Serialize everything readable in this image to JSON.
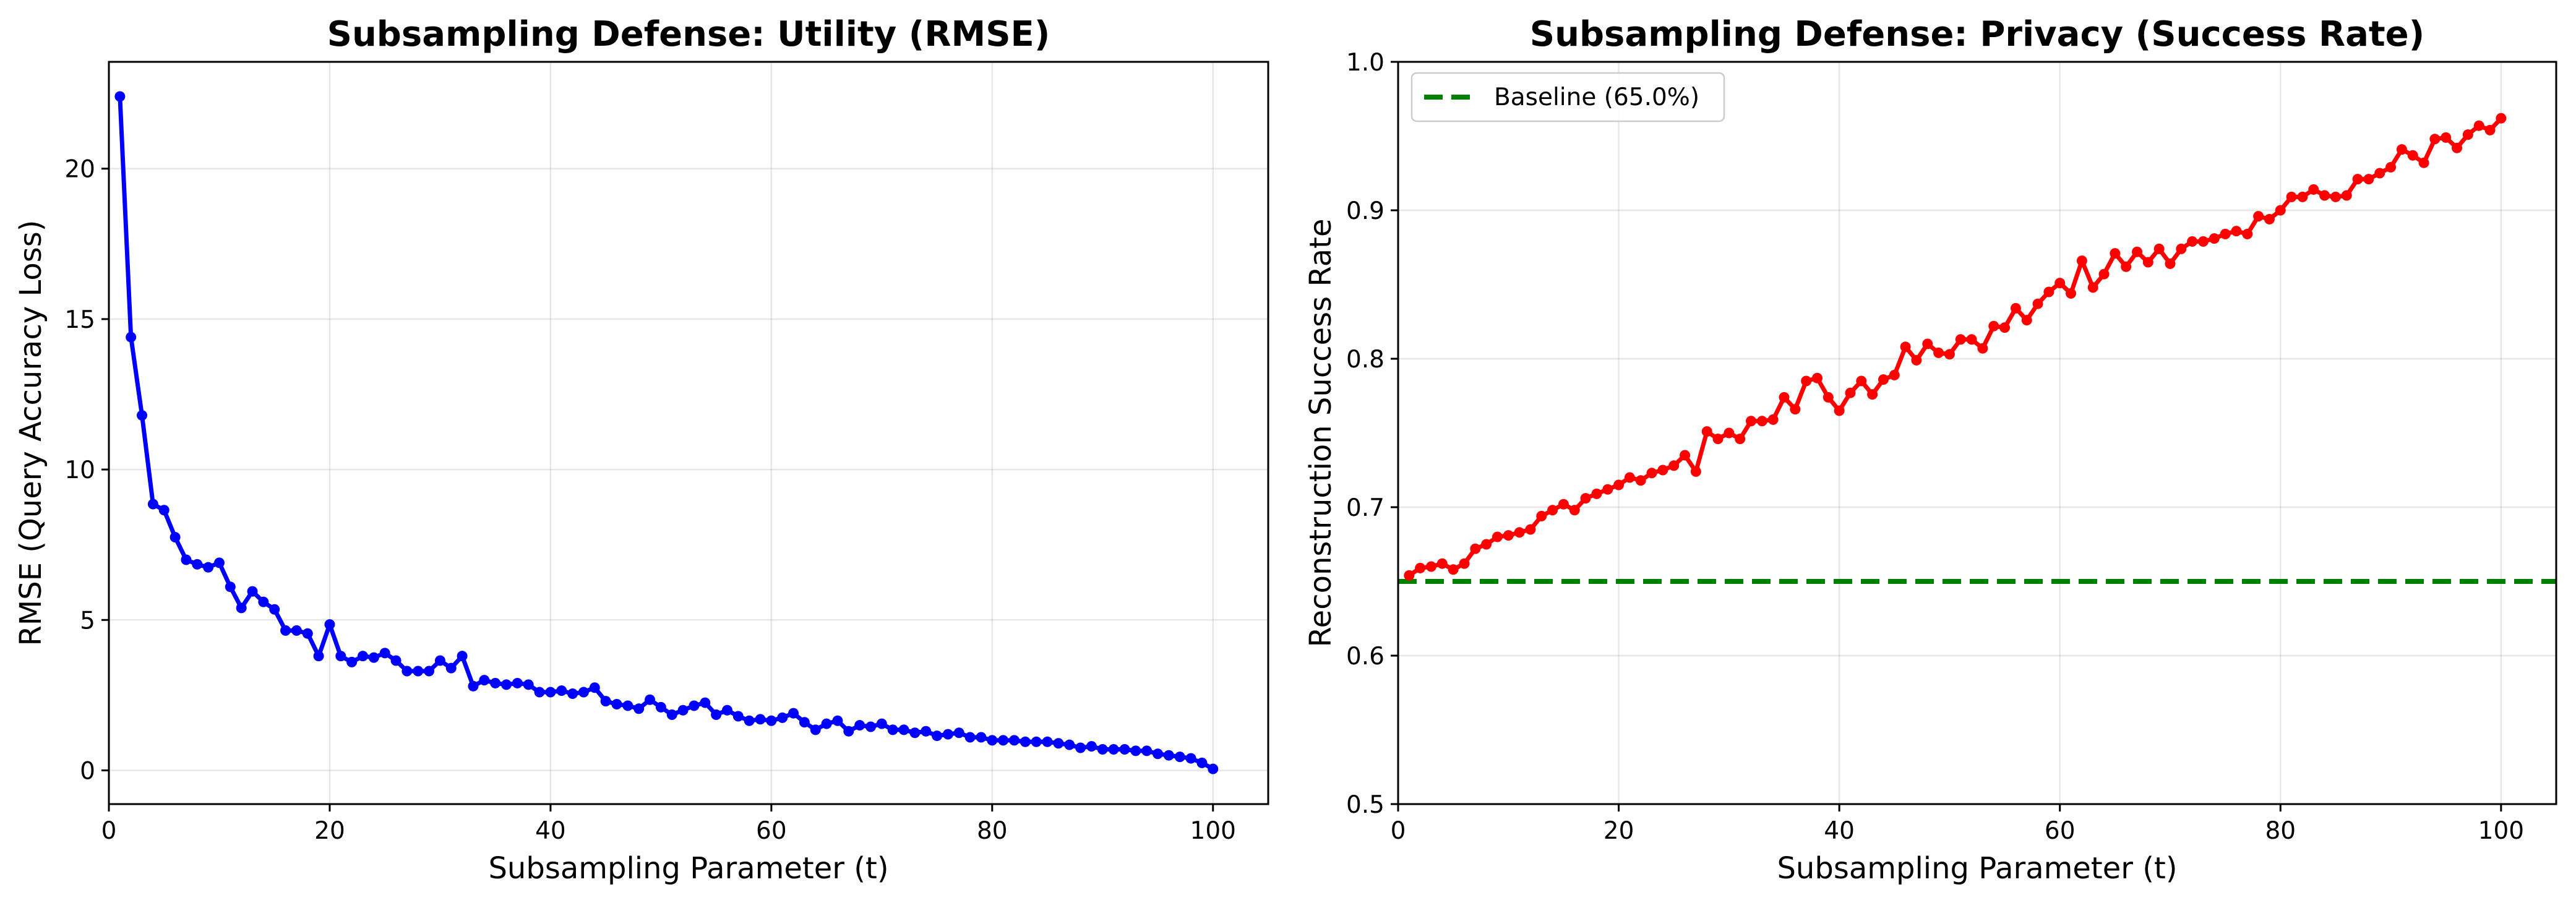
{
  "chart_data": [
    {
      "type": "line",
      "title": "Subsampling Defense: Utility (RMSE)",
      "xlabel": "Subsampling Parameter (t)",
      "ylabel": "RMSE (Query Accuracy Loss)",
      "xlim": [
        0,
        105
      ],
      "ylim": [
        -1.12,
        23.55
      ],
      "xticks": [
        0,
        20,
        40,
        60,
        80,
        100
      ],
      "yticks": [
        0,
        5,
        10,
        15,
        20
      ],
      "grid": true,
      "color": "#0000ff",
      "series": [
        {
          "x": [
            1,
            2,
            3,
            4,
            5,
            6,
            7,
            8,
            9,
            10,
            11,
            12,
            13,
            14,
            15,
            16,
            17,
            18,
            19,
            20,
            21,
            22,
            23,
            24,
            25,
            26,
            27,
            28,
            29,
            30,
            31,
            32,
            33,
            34,
            35,
            36,
            37,
            38,
            39,
            40,
            41,
            42,
            43,
            44,
            45,
            46,
            47,
            48,
            49,
            50,
            51,
            52,
            53,
            54,
            55,
            56,
            57,
            58,
            59,
            60,
            61,
            62,
            63,
            64,
            65,
            66,
            67,
            68,
            69,
            70,
            71,
            72,
            73,
            74,
            75,
            76,
            77,
            78,
            79,
            80,
            81,
            82,
            83,
            84,
            85,
            86,
            87,
            88,
            89,
            90,
            91,
            92,
            93,
            94,
            95,
            96,
            97,
            98,
            99,
            100
          ],
          "values": [
            22.4,
            14.4,
            11.8,
            8.85,
            8.65,
            7.75,
            7.0,
            6.85,
            6.75,
            6.9,
            6.1,
            5.4,
            5.95,
            5.6,
            5.35,
            4.65,
            4.65,
            4.55,
            3.8,
            4.85,
            3.8,
            3.6,
            3.8,
            3.75,
            3.9,
            3.65,
            3.3,
            3.3,
            3.3,
            3.65,
            3.4,
            3.8,
            2.8,
            3.0,
            2.9,
            2.85,
            2.9,
            2.85,
            2.6,
            2.6,
            2.65,
            2.55,
            2.6,
            2.75,
            2.3,
            2.2,
            2.15,
            2.05,
            2.35,
            2.1,
            1.85,
            2.0,
            2.15,
            2.25,
            1.85,
            2.0,
            1.8,
            1.65,
            1.7,
            1.65,
            1.75,
            1.9,
            1.6,
            1.35,
            1.55,
            1.65,
            1.3,
            1.5,
            1.45,
            1.55,
            1.35,
            1.35,
            1.25,
            1.3,
            1.15,
            1.2,
            1.25,
            1.1,
            1.1,
            1.0,
            1.0,
            1.0,
            0.95,
            0.95,
            0.95,
            0.9,
            0.85,
            0.75,
            0.8,
            0.7,
            0.7,
            0.7,
            0.65,
            0.65,
            0.55,
            0.5,
            0.45,
            0.4,
            0.25,
            0.05
          ]
        }
      ]
    },
    {
      "type": "line",
      "title": "Subsampling Defense: Privacy (Success Rate)",
      "xlabel": "Subsampling Parameter (t)",
      "ylabel": "Reconstruction Success Rate",
      "xlim": [
        0,
        105
      ],
      "ylim": [
        0.5,
        1.0
      ],
      "xticks": [
        0,
        20,
        40,
        60,
        80,
        100
      ],
      "yticks": [
        0.5,
        0.6,
        0.7,
        0.8,
        0.9,
        1.0
      ],
      "grid": true,
      "color": "#ff0000",
      "legend_position": "top-left",
      "baseline": {
        "name": "Baseline (65.0%)",
        "value": 0.65,
        "color": "#008000"
      },
      "series": [
        {
          "x": [
            1,
            2,
            3,
            4,
            5,
            6,
            7,
            8,
            9,
            10,
            11,
            12,
            13,
            14,
            15,
            16,
            17,
            18,
            19,
            20,
            21,
            22,
            23,
            24,
            25,
            26,
            27,
            28,
            29,
            30,
            31,
            32,
            33,
            34,
            35,
            36,
            37,
            38,
            39,
            40,
            41,
            42,
            43,
            44,
            45,
            46,
            47,
            48,
            49,
            50,
            51,
            52,
            53,
            54,
            55,
            56,
            57,
            58,
            59,
            60,
            61,
            62,
            63,
            64,
            65,
            66,
            67,
            68,
            69,
            70,
            71,
            72,
            73,
            74,
            75,
            76,
            77,
            78,
            79,
            80,
            81,
            82,
            83,
            84,
            85,
            86,
            87,
            88,
            89,
            90,
            91,
            92,
            93,
            94,
            95,
            96,
            97,
            98,
            99,
            100
          ],
          "values": [
            0.654,
            0.659,
            0.66,
            0.662,
            0.658,
            0.662,
            0.672,
            0.675,
            0.68,
            0.681,
            0.683,
            0.685,
            0.694,
            0.698,
            0.702,
            0.698,
            0.706,
            0.709,
            0.712,
            0.715,
            0.72,
            0.718,
            0.723,
            0.725,
            0.728,
            0.735,
            0.724,
            0.751,
            0.746,
            0.75,
            0.746,
            0.758,
            0.758,
            0.759,
            0.774,
            0.766,
            0.785,
            0.787,
            0.774,
            0.765,
            0.777,
            0.785,
            0.776,
            0.786,
            0.789,
            0.808,
            0.799,
            0.81,
            0.804,
            0.803,
            0.813,
            0.813,
            0.807,
            0.822,
            0.821,
            0.834,
            0.826,
            0.837,
            0.845,
            0.851,
            0.844,
            0.866,
            0.848,
            0.857,
            0.871,
            0.862,
            0.872,
            0.865,
            0.874,
            0.864,
            0.874,
            0.879,
            0.879,
            0.881,
            0.884,
            0.886,
            0.884,
            0.896,
            0.894,
            0.9,
            0.909,
            0.909,
            0.914,
            0.91,
            0.909,
            0.91,
            0.921,
            0.921,
            0.925,
            0.929,
            0.941,
            0.937,
            0.932,
            0.948,
            0.949,
            0.942,
            0.951,
            0.957,
            0.954,
            0.962
          ]
        }
      ]
    }
  ]
}
